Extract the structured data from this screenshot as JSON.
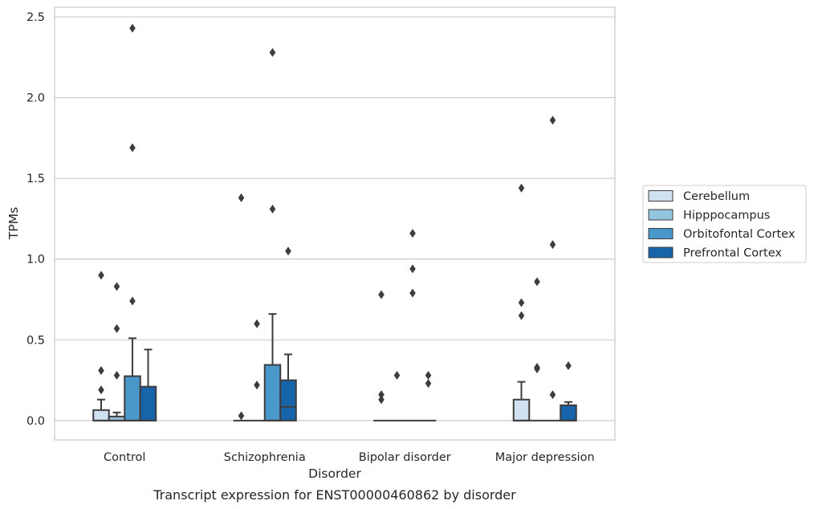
{
  "chart_data": {
    "type": "box",
    "caption": "Transcript expression for ENST00000460862 by disorder",
    "xlabel": "Disorder",
    "ylabel": "TPMs",
    "ylim": [
      -0.12,
      2.56
    ],
    "yticks": [
      "0.0",
      "0.5",
      "1.0",
      "1.5",
      "2.0",
      "2.5"
    ],
    "ytick_values": [
      0,
      0.5,
      1.0,
      1.5,
      2.0,
      2.5
    ],
    "grid": true,
    "legend_position": "right",
    "categories": [
      "Control",
      "Schizophrenia",
      "Bipolar disorder",
      "Major depression"
    ],
    "series": [
      {
        "name": "Cerebellum",
        "color": "#d0e1f2",
        "boxes": [
          {
            "q1": 0,
            "median": 0,
            "q3": 0.065,
            "whisker_low": 0,
            "whisker_high": 0.13,
            "outliers": [
              0.19,
              0.31,
              0.9
            ]
          },
          {
            "q1": 0,
            "median": 0,
            "q3": 0,
            "whisker_low": 0,
            "whisker_high": 0,
            "outliers": [
              0.03,
              1.38
            ]
          },
          {
            "q1": 0,
            "median": 0,
            "q3": 0,
            "whisker_low": 0,
            "whisker_high": 0,
            "outliers": [
              0.13,
              0.16,
              0.78
            ]
          },
          {
            "q1": 0,
            "median": 0,
            "q3": 0.13,
            "whisker_low": 0,
            "whisker_high": 0.24,
            "outliers": [
              0.65,
              0.73,
              1.44
            ]
          }
        ]
      },
      {
        "name": "Hipppocampus",
        "color": "#94c4df",
        "boxes": [
          {
            "q1": 0,
            "median": 0,
            "q3": 0.025,
            "whisker_low": 0,
            "whisker_high": 0.05,
            "outliers": [
              0.28,
              0.57,
              0.83
            ]
          },
          {
            "q1": 0,
            "median": 0,
            "q3": 0,
            "whisker_low": 0,
            "whisker_high": 0,
            "outliers": [
              0.22,
              0.6
            ]
          },
          {
            "q1": 0,
            "median": 0,
            "q3": 0,
            "whisker_low": 0,
            "whisker_high": 0,
            "outliers": [
              0.28
            ]
          },
          {
            "q1": 0,
            "median": 0,
            "q3": 0,
            "whisker_low": 0,
            "whisker_high": 0,
            "outliers": [
              0.32,
              0.33,
              0.86
            ]
          }
        ]
      },
      {
        "name": "Orbitofontal Cortex",
        "color": "#4a98c9",
        "boxes": [
          {
            "q1": 0,
            "median": 0,
            "q3": 0.275,
            "whisker_low": 0,
            "whisker_high": 0.51,
            "outliers": [
              0.74,
              1.69,
              2.43
            ]
          },
          {
            "q1": 0,
            "median": 0,
            "q3": 0.345,
            "whisker_low": 0,
            "whisker_high": 0.66,
            "outliers": [
              1.31,
              2.28
            ]
          },
          {
            "q1": 0,
            "median": 0,
            "q3": 0,
            "whisker_low": 0,
            "whisker_high": 0,
            "outliers": [
              0.79,
              0.94,
              1.16
            ]
          },
          {
            "q1": 0,
            "median": 0,
            "q3": 0,
            "whisker_low": 0,
            "whisker_high": 0,
            "outliers": [
              0.16,
              1.09,
              1.86
            ]
          }
        ]
      },
      {
        "name": "Prefrontal Cortex",
        "color": "#1764ab",
        "boxes": [
          {
            "q1": 0,
            "median": 0,
            "q3": 0.21,
            "whisker_low": 0,
            "whisker_high": 0.44,
            "outliers": []
          },
          {
            "q1": 0,
            "median": 0.085,
            "q3": 0.25,
            "whisker_low": 0,
            "whisker_high": 0.41,
            "outliers": [
              1.05
            ]
          },
          {
            "q1": 0,
            "median": 0,
            "q3": 0,
            "whisker_low": 0,
            "whisker_high": 0,
            "outliers": [
              0.23,
              0.28
            ]
          },
          {
            "q1": 0,
            "median": 0,
            "q3": 0.095,
            "whisker_low": 0,
            "whisker_high": 0.115,
            "outliers": [
              0.34
            ]
          }
        ]
      }
    ]
  }
}
